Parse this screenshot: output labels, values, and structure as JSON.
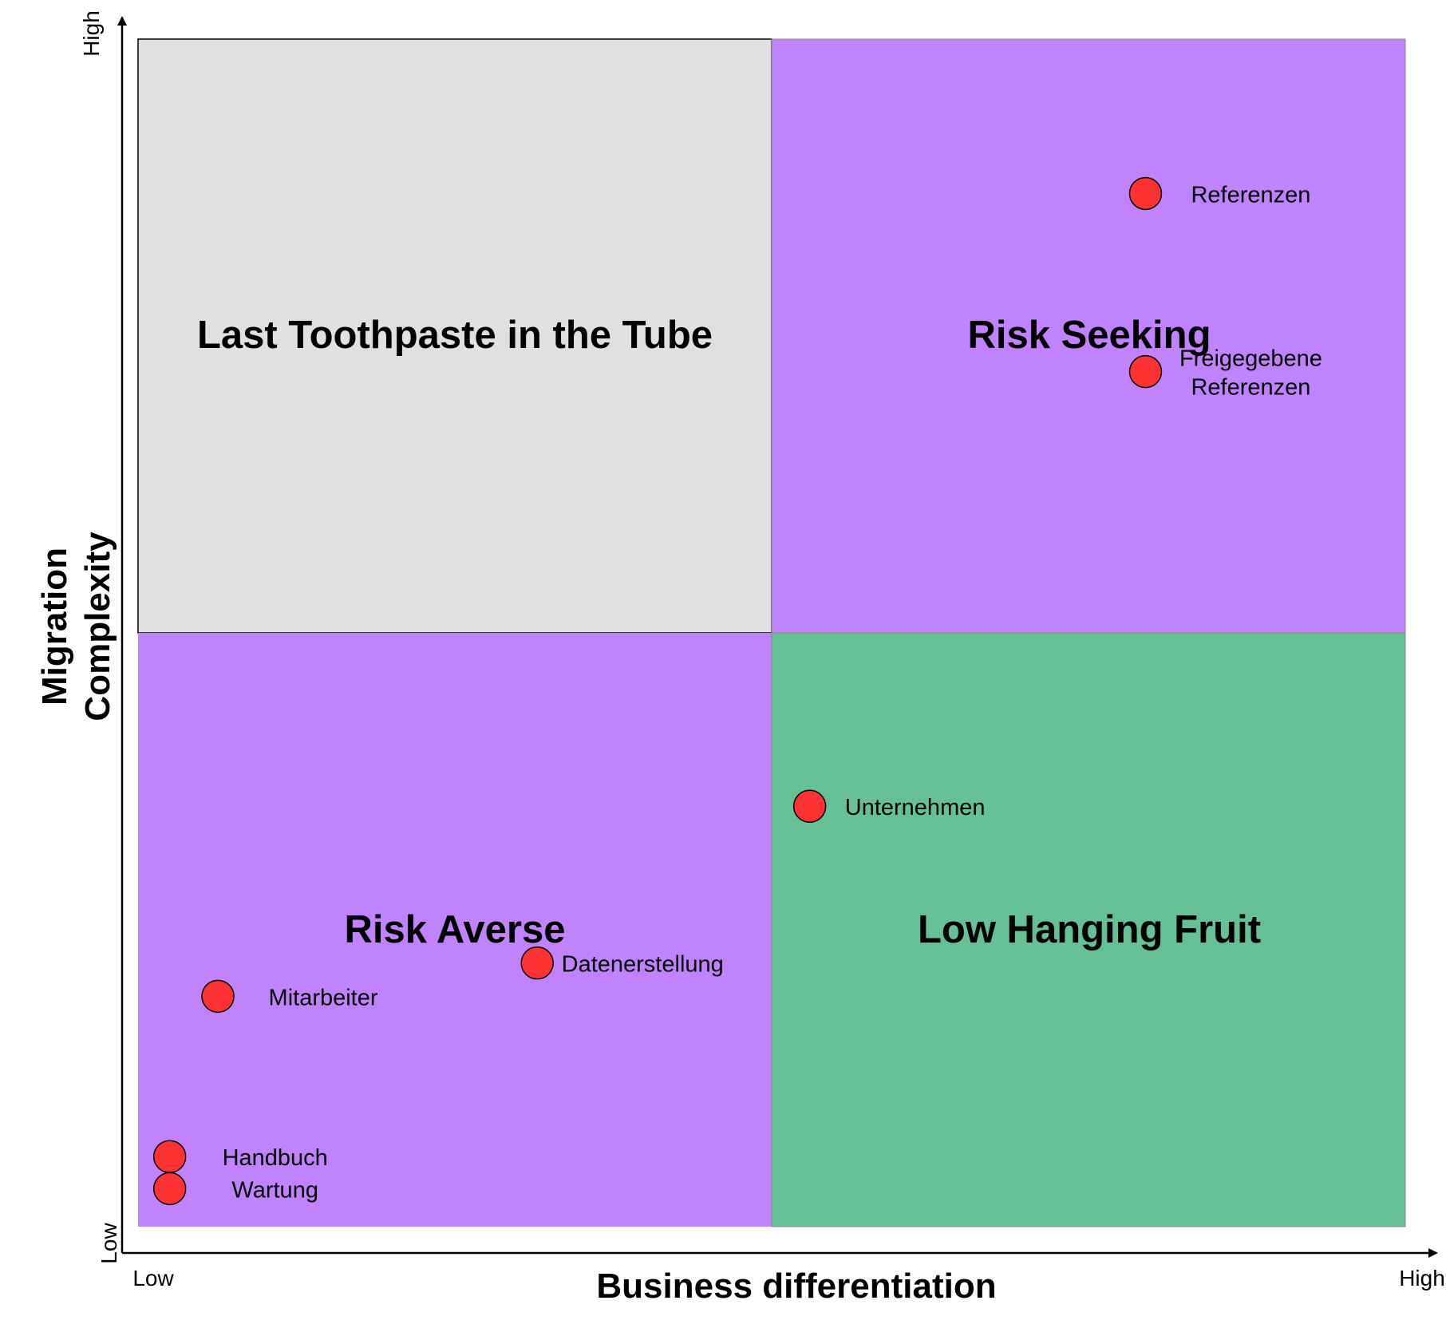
{
  "colors": {
    "top_left": "#e0e0e0",
    "top_right": "#c083fd",
    "bottom_left": "#c083fd",
    "bottom_right": "#66c095",
    "point_fill": "#ff3333"
  },
  "quadrants": {
    "top_left": "Last Toothpaste in the Tube",
    "top_right": "Risk Seeking",
    "bottom_left": "Risk Averse",
    "bottom_right": "Low Hanging Fruit"
  },
  "axes": {
    "x_title": "Business differentiation",
    "y_title_line1": "Migration",
    "y_title_line2": "Complexity",
    "x_low": "Low",
    "x_high": "High",
    "y_low": "Low",
    "y_high": "High"
  },
  "points": [
    {
      "id": "referenzen",
      "label": [
        "Referenzen"
      ],
      "x": 0.795,
      "y": 0.87
    },
    {
      "id": "freigegebene-referenzen",
      "label": [
        "Freigegebene",
        "Referenzen"
      ],
      "x": 0.795,
      "y": 0.72
    },
    {
      "id": "unternehmen",
      "label": [
        "Unternehmen"
      ],
      "x": 0.53,
      "y": 0.354
    },
    {
      "id": "datenerstellung",
      "label": [
        "Datenerstellung"
      ],
      "x": 0.315,
      "y": 0.222
    },
    {
      "id": "mitarbeiter",
      "label": [
        "Mitarbeiter"
      ],
      "x": 0.063,
      "y": 0.194
    },
    {
      "id": "handbuch",
      "label": [
        "Handbuch"
      ],
      "x": 0.025,
      "y": 0.059
    },
    {
      "id": "wartung",
      "label": [
        "Wartung"
      ],
      "x": 0.025,
      "y": 0.032
    }
  ]
}
